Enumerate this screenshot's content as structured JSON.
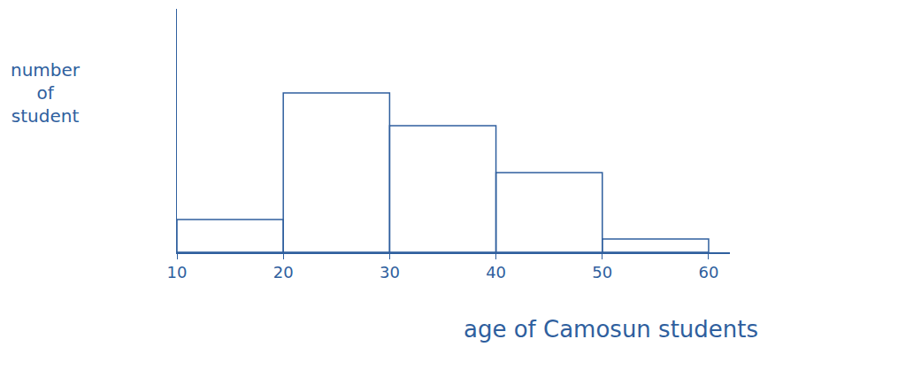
{
  "chart_data": {
    "type": "histogram",
    "x_label": "age of Camosun students",
    "y_label": "number of student",
    "bins": [
      10,
      20,
      30,
      40,
      50,
      60
    ],
    "values": [
      37,
      180,
      143,
      90,
      15
    ],
    "color": "#2f5f9e",
    "xlim": [
      10,
      62
    ],
    "xticks": [
      10,
      20,
      30,
      40,
      50,
      60
    ],
    "ylim": [
      0,
      275
    ],
    "tick_labels": "x",
    "grid": false
  }
}
